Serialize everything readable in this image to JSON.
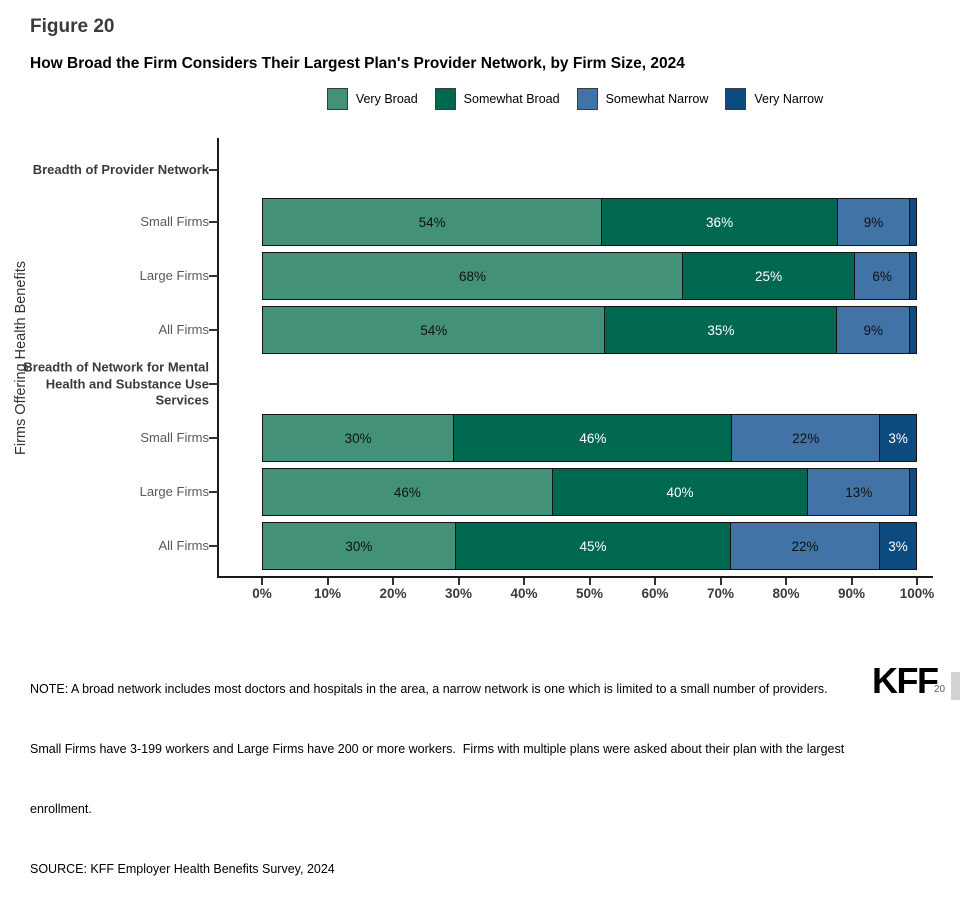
{
  "header": {
    "figure_label": "Figure 20",
    "title": "How Broad the Firm Considers Their Largest Plan's Provider Network, by Firm Size, 2024"
  },
  "legend": [
    {
      "label": "Very Broad",
      "color": "#44917A",
      "text_color": "#111111"
    },
    {
      "label": "Somewhat Broad",
      "color": "#00684F",
      "text_color": "#ffffff"
    },
    {
      "label": "Somewhat Narrow",
      "color": "#4173A6",
      "text_color": "#111111"
    },
    {
      "label": "Very Narrow",
      "color": "#0D4B7E",
      "text_color": "#ffffff"
    }
  ],
  "chart_data": {
    "type": "bar",
    "stacked": true,
    "orientation": "horizontal",
    "title": "How Broad the Firm Considers Their Largest Plan's Provider Network, by Firm Size, 2024",
    "xlabel": "",
    "ylabel": "Firms Offering Health Benefits",
    "xlim": [
      0,
      100
    ],
    "x_ticks": [
      "0%",
      "10%",
      "20%",
      "30%",
      "40%",
      "50%",
      "60%",
      "70%",
      "80%",
      "90%",
      "100%"
    ],
    "legend_position": "top",
    "series_names": [
      "Very Broad",
      "Somewhat Broad",
      "Somewhat Narrow",
      "Very Narrow"
    ],
    "groups": [
      {
        "header": "Breadth of Provider Network",
        "rows": [
          {
            "category": "Small Firms",
            "values": [
              54,
              36,
              9,
              1
            ],
            "labels": [
              "54%",
              "36%",
              "9%",
              ""
            ]
          },
          {
            "category": "Large Firms",
            "values": [
              68,
              25,
              6,
              1
            ],
            "labels": [
              "68%",
              "25%",
              "6%",
              ""
            ]
          },
          {
            "category": "All Firms",
            "values": [
              54,
              35,
              9,
              1
            ],
            "labels": [
              "54%",
              "35%",
              "9%",
              ""
            ]
          }
        ]
      },
      {
        "header": "Breadth of Network for Mental Health and Substance Use Services",
        "rows": [
          {
            "category": "Small Firms",
            "values": [
              30,
              46,
              22,
              3
            ],
            "labels": [
              "30%",
              "46%",
              "22%",
              "3%"
            ]
          },
          {
            "category": "Large Firms",
            "values": [
              46,
              40,
              13,
              1
            ],
            "labels": [
              "46%",
              "40%",
              "13%",
              ""
            ]
          },
          {
            "category": "All Firms",
            "values": [
              30,
              45,
              22,
              3
            ],
            "labels": [
              "30%",
              "45%",
              "22%",
              "3%"
            ]
          }
        ]
      }
    ]
  },
  "notes": [
    "NOTE: A broad network includes most doctors and hospitals in the area, a narrow network is one which is limited to a small number of providers.",
    "Small Firms have 3-199 workers and Large Firms have 200 or more workers.  Firms with multiple plans were asked about their plan with the largest",
    "enrollment.",
    "SOURCE: KFF Employer Health Benefits Survey, 2024"
  ],
  "footer": {
    "logo": "KFF",
    "page_number": "20"
  }
}
